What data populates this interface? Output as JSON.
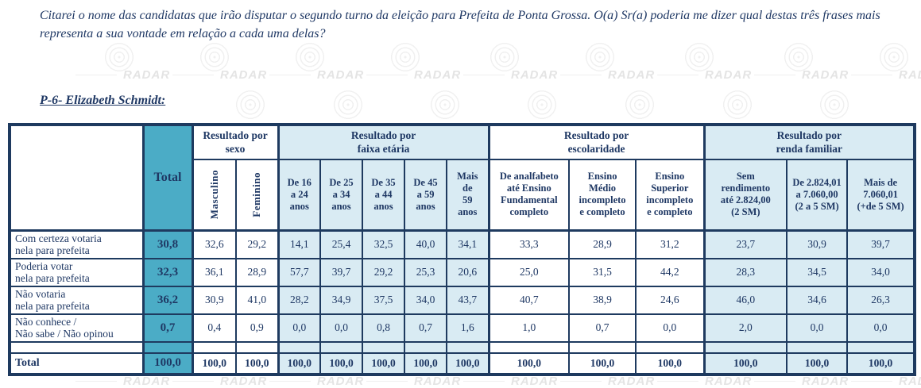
{
  "page": {
    "question": "Citarei o nome das candidatas que irão disputar o segundo turno da eleição para Prefeita de Ponta Grossa. O(a) Sr(a) poderia me dizer qual destas três frases mais representa a sua vontade em relação a cada uma delas?",
    "subtitle": "P-6- Elizabeth Schmidt:"
  },
  "watermark": {
    "text": "RADAR"
  },
  "colors": {
    "navy_text": "#1F3864",
    "border_navy": "#1E3A5F",
    "accent_teal": "#4BACC6",
    "light_blue": "#D9EBF3"
  },
  "table": {
    "corner_label": "",
    "total_column_label": "Total",
    "groups": [
      {
        "label": "Resultado por\nsexo",
        "columns": [
          "Masculino",
          "Feminino"
        ]
      },
      {
        "label": "Resultado por\nfaixa etária",
        "columns": [
          "De 16\na 24\nanos",
          "De 25\na 34\nanos",
          "De 35\na 44\nanos",
          "De 45\na 59\nanos",
          "Mais\nde\n59\nanos"
        ]
      },
      {
        "label": "Resultado por\nescolaridade",
        "columns": [
          "De analfabeto\naté Ensino\nFundamental\ncompleto",
          "Ensino\nMédio\nincompleto\ne completo",
          "Ensino\nSuperior\nincompleto\ne completo"
        ]
      },
      {
        "label": "Resultado por\nrenda familiar",
        "columns": [
          "Sem\nrendimento\naté 2.824,00\n(2 SM)",
          "De 2.824,01\na 7.060,00\n(2 a 5 SM)",
          "Mais de\n7.060,01\n(+de 5 SM)"
        ]
      }
    ],
    "rows": [
      {
        "label": "Com certeza votaria\nnela para prefeita",
        "values": [
          "30,8",
          "32,6",
          "29,2",
          "14,1",
          "25,4",
          "32,5",
          "40,0",
          "34,1",
          "33,3",
          "28,9",
          "31,2",
          "23,7",
          "30,9",
          "39,7"
        ]
      },
      {
        "label": "Poderia votar\nnela para prefeita",
        "values": [
          "32,3",
          "36,1",
          "28,9",
          "57,7",
          "39,7",
          "29,2",
          "25,3",
          "20,6",
          "25,0",
          "31,5",
          "44,2",
          "28,3",
          "34,5",
          "34,0"
        ]
      },
      {
        "label": "Não votaria\nnela para prefeita",
        "values": [
          "36,2",
          "30,9",
          "41,0",
          "28,2",
          "34,9",
          "37,5",
          "34,0",
          "43,7",
          "40,7",
          "38,9",
          "24,6",
          "46,0",
          "34,6",
          "26,3"
        ]
      },
      {
        "label": "Não conhece /\nNão sabe / Não opinou",
        "values": [
          "0,7",
          "0,4",
          "0,9",
          "0,0",
          "0,0",
          "0,8",
          "0,7",
          "1,6",
          "1,0",
          "0,7",
          "0,0",
          "2,0",
          "0,0",
          "0,0"
        ]
      }
    ],
    "total_row": {
      "label": "Total",
      "values": [
        "100,0",
        "100,0",
        "100,0",
        "100,0",
        "100,0",
        "100,0",
        "100,0",
        "100,0",
        "100,0",
        "100,0",
        "100,0",
        "100,0",
        "100,0",
        "100,0"
      ]
    }
  }
}
